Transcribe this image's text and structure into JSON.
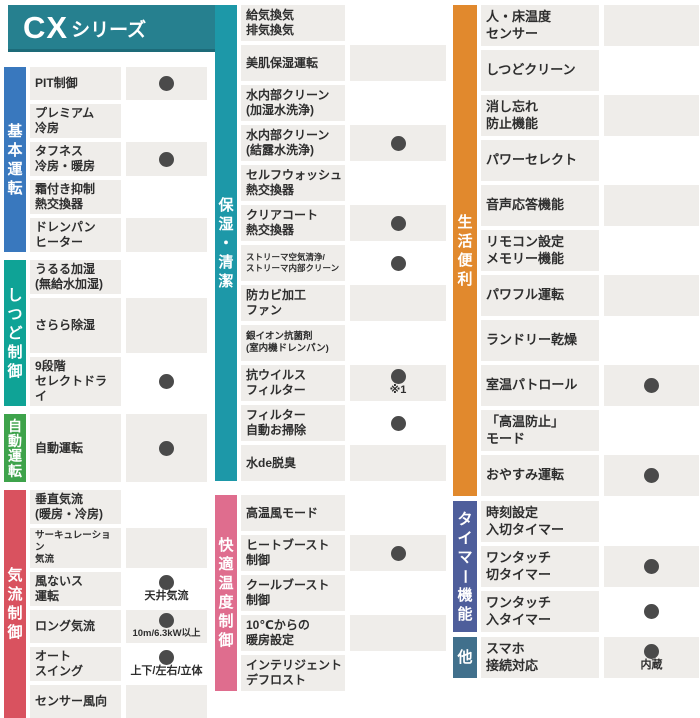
{
  "header": {
    "code": "CX",
    "suffix": "シリーズ"
  },
  "colors": {
    "header_teal": "#26808F",
    "row_gray": "#EFEDEA",
    "dot_gray": "#4A4A4A",
    "basic_blue": "#3978BE",
    "humidity_teal": "#0FA396",
    "auto_green": "#3EA34B",
    "airflow_red": "#D9525F",
    "clean_teal": "#1D98A8",
    "comfort_pink": "#DF6D8E",
    "convenience_orange": "#E1892D",
    "timer_slate": "#4E5E9B",
    "other_steel": "#41708C"
  },
  "chart_data": {
    "type": "table",
    "title": "CXシリーズ",
    "mark_glyph": "●",
    "column_groups": [
      {
        "groups": [
          {
            "name": "基本運転",
            "color": "#3978BE",
            "rows": [
              {
                "label": "PIT制御",
                "dot": true
              },
              {
                "label": "プレミアム\n冷房",
                "dot": false
              },
              {
                "label": "タフネス\n冷房・暖房",
                "dot": true
              },
              {
                "label": "霜付き抑制\n熱交換器",
                "dot": false
              },
              {
                "label": "ドレンパン\nヒーター",
                "dot": false
              }
            ]
          },
          {
            "name": "しつど制御",
            "color": "#0FA396",
            "rows": [
              {
                "label": "うるる加湿\n(無給水加湿)",
                "dot": false
              },
              {
                "label": "さらら除湿",
                "dot": false
              },
              {
                "label": "9段階\nセレクトドライ",
                "dot": true
              }
            ]
          },
          {
            "name": "自動運転",
            "color": "#3EA34B",
            "rows": [
              {
                "label": "自動運転",
                "dot": true
              }
            ]
          },
          {
            "name": "気流制御",
            "color": "#D9525F",
            "rows": [
              {
                "label": "垂直気流\n(暖房・冷房)",
                "dot": false
              },
              {
                "label": "サーキュレーション\n気流",
                "dot": false
              },
              {
                "label": "風ないス\n運転",
                "dot": true,
                "note": "天井気流"
              },
              {
                "label": "ロング気流",
                "dot": true,
                "note": "10m/6.3kW以上"
              },
              {
                "label": "オート\nスイング",
                "dot": true,
                "note": "上下/左右/立体"
              },
              {
                "label": "センサー風向",
                "dot": false
              }
            ]
          }
        ]
      },
      {
        "groups": [
          {
            "name": "保湿・清潔",
            "color": "#1D98A8",
            "rows": [
              {
                "label": "給気換気\n排気換気",
                "dot": false
              },
              {
                "label": "美肌保湿運転",
                "dot": false
              },
              {
                "label": "水内部クリーン\n(加湿水洗浄)",
                "dot": false
              },
              {
                "label": "水内部クリーン\n(結露水洗浄)",
                "dot": true
              },
              {
                "label": "セルフウォッシュ\n熱交換器",
                "dot": false
              },
              {
                "label": "クリアコート\n熱交換器",
                "dot": true
              },
              {
                "label": "ストリーマ空気清浄/\nストリーマ内部クリーン",
                "dot": true
              },
              {
                "label": "防カビ加工\nファン",
                "dot": false
              },
              {
                "label": "銀イオン抗菌剤\n(室内機ドレンパン)",
                "dot": false
              },
              {
                "label": "抗ウイルス\nフィルター",
                "dot": true,
                "note": "※1"
              },
              {
                "label": "フィルター\n自動お掃除",
                "dot": true
              },
              {
                "label": "水de脱臭",
                "dot": false
              }
            ]
          },
          {
            "name": "快適温度制御",
            "color": "#DF6D8E",
            "rows": [
              {
                "label": "高温風モード",
                "dot": false
              },
              {
                "label": "ヒートブースト\n制御",
                "dot": true
              },
              {
                "label": "クールブースト\n制御",
                "dot": false
              },
              {
                "label": "10℃からの\n暖房設定",
                "dot": false
              },
              {
                "label": "インテリジェント\nデフロスト",
                "dot": false
              }
            ]
          }
        ]
      },
      {
        "groups": [
          {
            "name": "生活便利",
            "color": "#E1892D",
            "rows": [
              {
                "label": "人・床温度\nセンサー",
                "dot": false
              },
              {
                "label": "しつどクリーン",
                "dot": false
              },
              {
                "label": "消し忘れ\n防止機能",
                "dot": false
              },
              {
                "label": "パワーセレクト",
                "dot": false
              },
              {
                "label": "音声応答機能",
                "dot": false
              },
              {
                "label": "リモコン設定\nメモリー機能",
                "dot": false
              },
              {
                "label": "パワフル運転",
                "dot": false
              },
              {
                "label": "ランドリー乾燥",
                "dot": false
              },
              {
                "label": "室温パトロール",
                "dot": true
              },
              {
                "label": "「高温防止」\nモード",
                "dot": false
              },
              {
                "label": "おやすみ運転",
                "dot": true
              }
            ]
          },
          {
            "name": "タイマー機能",
            "color": "#4E5E9B",
            "rows": [
              {
                "label": "時刻設定\n入切タイマー",
                "dot": false
              },
              {
                "label": "ワンタッチ\n切タイマー",
                "dot": true
              },
              {
                "label": "ワンタッチ\n入タイマー",
                "dot": true
              }
            ]
          },
          {
            "name": "他",
            "color": "#41708C",
            "rows": [
              {
                "label": "スマホ\n接続対応",
                "dot": true,
                "note": "内蔵"
              }
            ]
          }
        ]
      }
    ]
  }
}
